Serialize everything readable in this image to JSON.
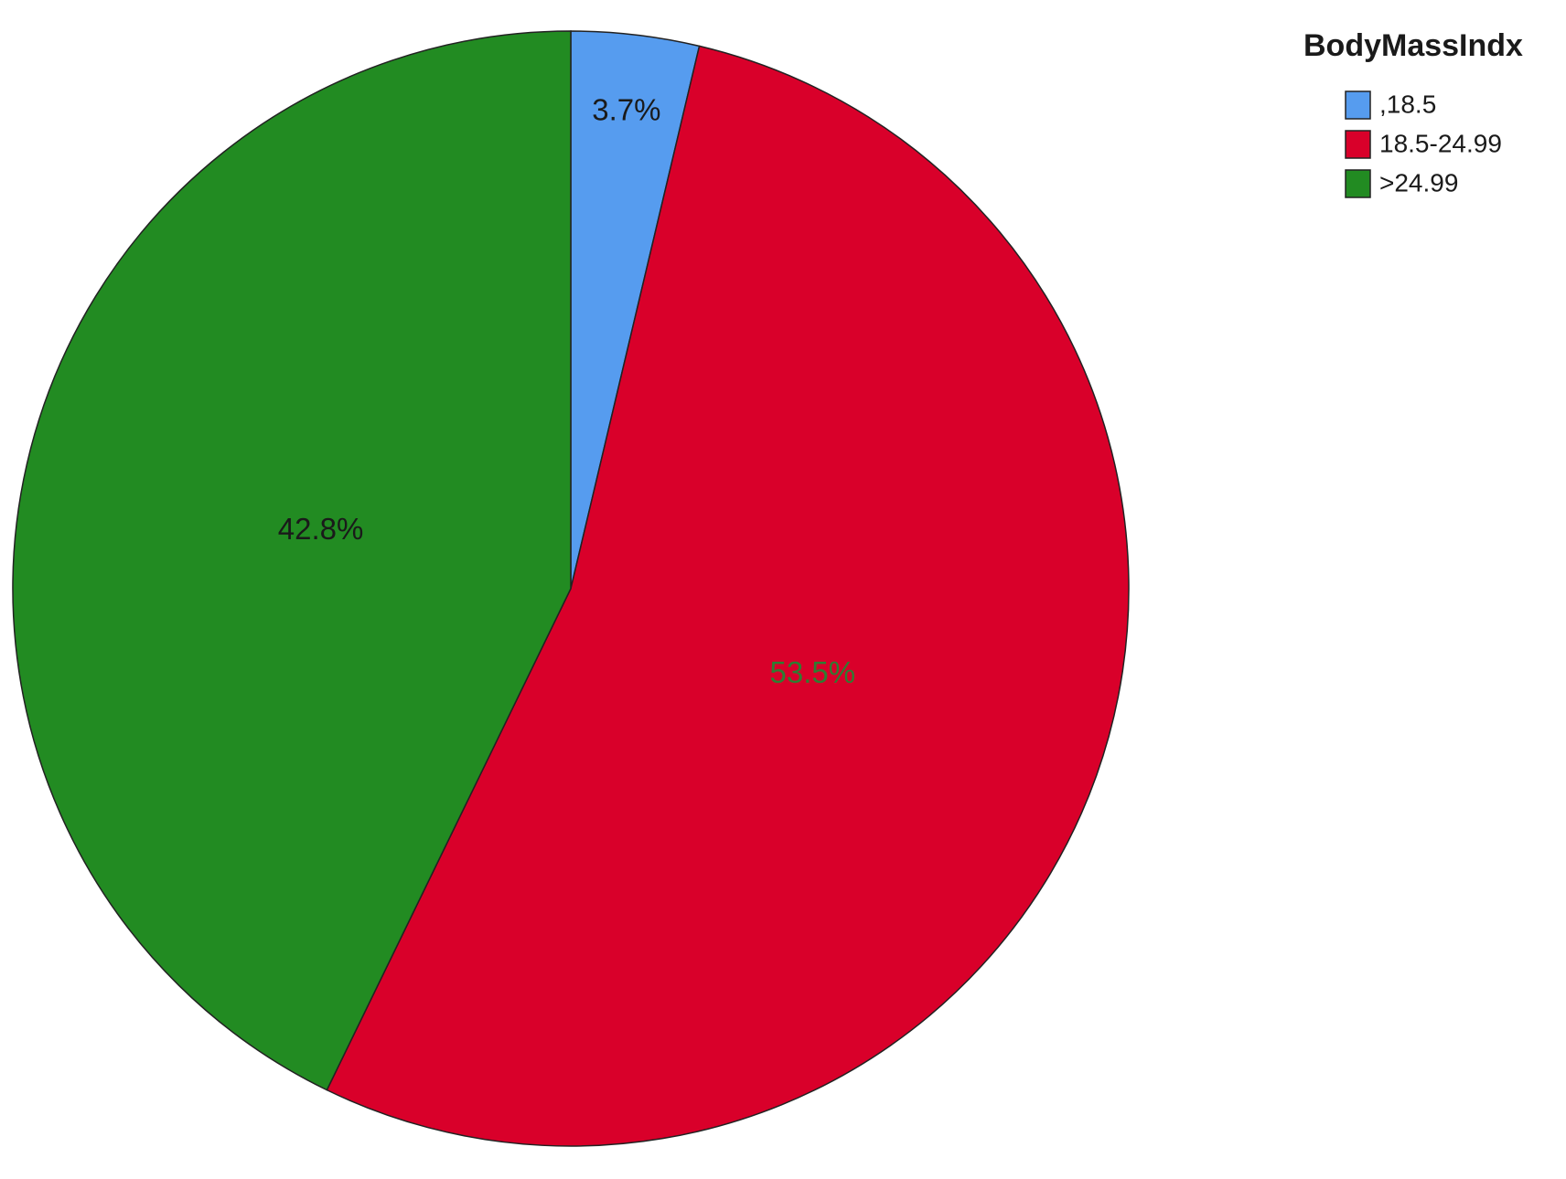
{
  "chart_data": {
    "type": "pie",
    "legend_title": "BodyMassIndx",
    "categories": [
      ",18.5",
      "18.5-24.99",
      ">24.99"
    ],
    "values": [
      3.7,
      53.5,
      42.8
    ],
    "value_labels": [
      "3.7%",
      "53.5%",
      "42.8%"
    ],
    "colors": [
      "#569cef",
      "#d9002a",
      "#228b22"
    ],
    "label_colors": [
      "#1a1a1a",
      "#2e7d32",
      "#1a1a1a"
    ],
    "legend": "top-right"
  }
}
